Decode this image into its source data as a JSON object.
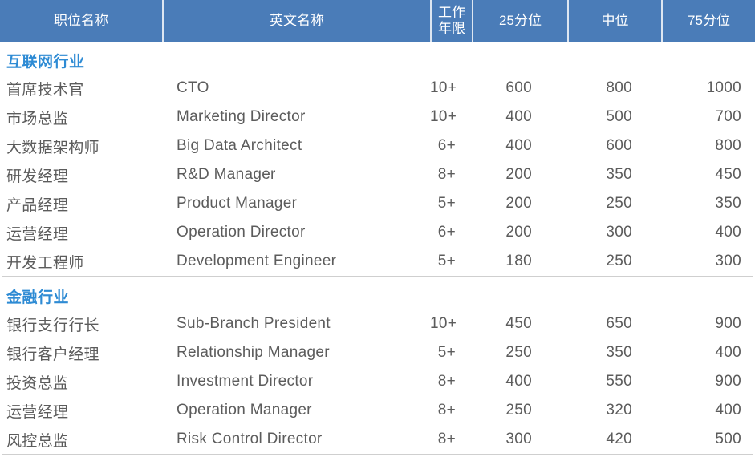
{
  "header": {
    "columns": [
      "职位名称",
      "英文名称",
      "工作年限",
      "25分位",
      "中位",
      "75分位"
    ]
  },
  "sections": [
    {
      "title": "互联网行业",
      "rows": [
        {
          "position": "首席技术官",
          "english": "CTO",
          "years": "10+",
          "p25": "600",
          "median": "800",
          "p75": "1000"
        },
        {
          "position": "市场总监",
          "english": "Marketing Director",
          "years": "10+",
          "p25": "400",
          "median": "500",
          "p75": "700"
        },
        {
          "position": "大数据架构师",
          "english": "Big Data Architect",
          "years": "6+",
          "p25": "400",
          "median": "600",
          "p75": "800"
        },
        {
          "position": "研发经理",
          "english": "R&D Manager",
          "years": "8+",
          "p25": "200",
          "median": "350",
          "p75": "450"
        },
        {
          "position": "产品经理",
          "english": "Product Manager",
          "years": "5+",
          "p25": "200",
          "median": "250",
          "p75": "350"
        },
        {
          "position": "运营经理",
          "english": "Operation Director",
          "years": "6+",
          "p25": "200",
          "median": "300",
          "p75": "400"
        },
        {
          "position": "开发工程师",
          "english": "Development Engineer",
          "years": "5+",
          "p25": "180",
          "median": "250",
          "p75": "300"
        }
      ]
    },
    {
      "title": "金融行业",
      "rows": [
        {
          "position": "银行支行行长",
          "english": "Sub-Branch President",
          "years": "10+",
          "p25": "450",
          "median": "650",
          "p75": "900"
        },
        {
          "position": "银行客户经理",
          "english": "Relationship Manager",
          "years": "5+",
          "p25": "250",
          "median": "350",
          "p75": "400"
        },
        {
          "position": "投资总监",
          "english": "Investment Director",
          "years": "8+",
          "p25": "400",
          "median": "550",
          "p75": "900"
        },
        {
          "position": "运营经理",
          "english": "Operation Manager",
          "years": "8+",
          "p25": "250",
          "median": "320",
          "p75": "400"
        },
        {
          "position": "风控总监",
          "english": "Risk Control Director",
          "years": "8+",
          "p25": "300",
          "median": "420",
          "p75": "500"
        }
      ]
    }
  ],
  "colors": {
    "header_background": "#4a7cb8",
    "header_text": "#ffffff",
    "header_cell_divider": "#dde6f1",
    "section_title_text": "#2e8bd4",
    "body_text": "#5c5c5c",
    "section_divider_line": "#cfcfcf"
  }
}
